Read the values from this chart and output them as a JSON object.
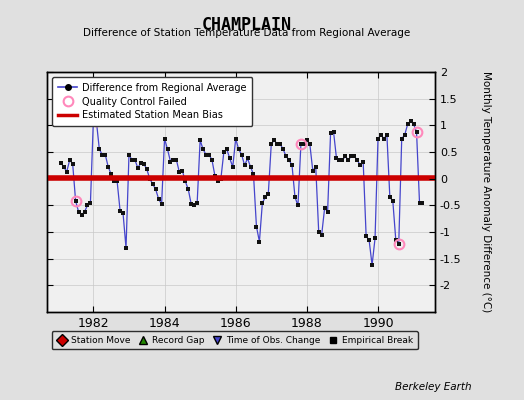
{
  "title": "CHAMPLAIN",
  "subtitle": "Difference of Station Temperature Data from Regional Average",
  "ylabel": "Monthly Temperature Anomaly Difference (°C)",
  "xlabel_bottom": "Berkeley Earth",
  "mean_bias": 0.02,
  "ylim": [
    -2.5,
    2.0
  ],
  "background_color": "#e0e0e0",
  "plot_bg_color": "#f0f0f0",
  "line_color": "#4444cc",
  "marker_color": "#111111",
  "bias_color": "#cc0000",
  "qc_color": "#ff88bb",
  "data": [
    [
      1981.0833,
      0.3
    ],
    [
      1981.1667,
      0.22
    ],
    [
      1981.25,
      0.13
    ],
    [
      1981.3333,
      0.35
    ],
    [
      1981.4167,
      0.28
    ],
    [
      1981.5,
      -0.42
    ],
    [
      1981.5833,
      -0.62
    ],
    [
      1981.6667,
      -0.68
    ],
    [
      1981.75,
      -0.62
    ],
    [
      1981.8333,
      -0.5
    ],
    [
      1981.9167,
      -0.45
    ],
    [
      1982.0,
      1.12
    ],
    [
      1982.0833,
      1.08
    ],
    [
      1982.1667,
      0.55
    ],
    [
      1982.25,
      0.45
    ],
    [
      1982.3333,
      0.45
    ],
    [
      1982.4167,
      0.22
    ],
    [
      1982.5,
      0.08
    ],
    [
      1982.5833,
      -0.05
    ],
    [
      1982.6667,
      -0.05
    ],
    [
      1982.75,
      -0.6
    ],
    [
      1982.8333,
      -0.65
    ],
    [
      1982.9167,
      -1.3
    ],
    [
      1983.0,
      0.45
    ],
    [
      1983.0833,
      0.35
    ],
    [
      1983.1667,
      0.35
    ],
    [
      1983.25,
      0.2
    ],
    [
      1983.3333,
      0.3
    ],
    [
      1983.4167,
      0.28
    ],
    [
      1983.5,
      0.18
    ],
    [
      1983.5833,
      0.0
    ],
    [
      1983.6667,
      -0.1
    ],
    [
      1983.75,
      -0.2
    ],
    [
      1983.8333,
      -0.38
    ],
    [
      1983.9167,
      -0.48
    ],
    [
      1984.0,
      0.75
    ],
    [
      1984.0833,
      0.55
    ],
    [
      1984.1667,
      0.32
    ],
    [
      1984.25,
      0.35
    ],
    [
      1984.3333,
      0.35
    ],
    [
      1984.4167,
      0.12
    ],
    [
      1984.5,
      0.15
    ],
    [
      1984.5833,
      -0.05
    ],
    [
      1984.6667,
      -0.2
    ],
    [
      1984.75,
      -0.48
    ],
    [
      1984.8333,
      -0.5
    ],
    [
      1984.9167,
      -0.45
    ],
    [
      1985.0,
      0.72
    ],
    [
      1985.0833,
      0.55
    ],
    [
      1985.1667,
      0.45
    ],
    [
      1985.25,
      0.45
    ],
    [
      1985.3333,
      0.35
    ],
    [
      1985.4167,
      0.05
    ],
    [
      1985.5,
      -0.05
    ],
    [
      1985.5833,
      0.0
    ],
    [
      1985.6667,
      0.5
    ],
    [
      1985.75,
      0.55
    ],
    [
      1985.8333,
      0.38
    ],
    [
      1985.9167,
      0.22
    ],
    [
      1986.0,
      0.75
    ],
    [
      1986.0833,
      0.55
    ],
    [
      1986.1667,
      0.45
    ],
    [
      1986.25,
      0.25
    ],
    [
      1986.3333,
      0.38
    ],
    [
      1986.4167,
      0.22
    ],
    [
      1986.5,
      0.08
    ],
    [
      1986.5833,
      -0.9
    ],
    [
      1986.6667,
      -1.18
    ],
    [
      1986.75,
      -0.45
    ],
    [
      1986.8333,
      -0.35
    ],
    [
      1986.9167,
      -0.28
    ],
    [
      1987.0,
      0.65
    ],
    [
      1987.0833,
      0.72
    ],
    [
      1987.1667,
      0.65
    ],
    [
      1987.25,
      0.65
    ],
    [
      1987.3333,
      0.55
    ],
    [
      1987.4167,
      0.42
    ],
    [
      1987.5,
      0.35
    ],
    [
      1987.5833,
      0.25
    ],
    [
      1987.6667,
      -0.35
    ],
    [
      1987.75,
      -0.5
    ],
    [
      1987.8333,
      0.65
    ],
    [
      1987.9167,
      0.65
    ],
    [
      1988.0,
      0.72
    ],
    [
      1988.0833,
      0.65
    ],
    [
      1988.1667,
      0.15
    ],
    [
      1988.25,
      0.22
    ],
    [
      1988.3333,
      -1.0
    ],
    [
      1988.4167,
      -1.05
    ],
    [
      1988.5,
      -0.55
    ],
    [
      1988.5833,
      -0.62
    ],
    [
      1988.6667,
      0.85
    ],
    [
      1988.75,
      0.88
    ],
    [
      1988.8333,
      0.38
    ],
    [
      1988.9167,
      0.35
    ],
    [
      1989.0,
      0.35
    ],
    [
      1989.0833,
      0.42
    ],
    [
      1989.1667,
      0.35
    ],
    [
      1989.25,
      0.42
    ],
    [
      1989.3333,
      0.42
    ],
    [
      1989.4167,
      0.35
    ],
    [
      1989.5,
      0.25
    ],
    [
      1989.5833,
      0.32
    ],
    [
      1989.6667,
      -1.08
    ],
    [
      1989.75,
      -1.15
    ],
    [
      1989.8333,
      -1.62
    ],
    [
      1989.9167,
      -1.12
    ],
    [
      1990.0,
      0.75
    ],
    [
      1990.0833,
      0.82
    ],
    [
      1990.1667,
      0.75
    ],
    [
      1990.25,
      0.82
    ],
    [
      1990.3333,
      -0.35
    ],
    [
      1990.4167,
      -0.42
    ],
    [
      1990.5,
      -1.15
    ],
    [
      1990.5833,
      -1.22
    ],
    [
      1990.6667,
      0.75
    ],
    [
      1990.75,
      0.82
    ],
    [
      1990.8333,
      1.02
    ],
    [
      1990.9167,
      1.08
    ],
    [
      1991.0,
      1.02
    ],
    [
      1991.0833,
      0.88
    ],
    [
      1991.1667,
      -0.45
    ],
    [
      1991.25,
      -0.45
    ]
  ],
  "qc_failed": [
    [
      1981.5,
      -0.42
    ],
    [
      1982.0833,
      1.08
    ],
    [
      1987.8333,
      0.65
    ],
    [
      1990.5833,
      -1.22
    ],
    [
      1991.0833,
      0.88
    ]
  ],
  "yticks": [
    -2.0,
    -1.5,
    -1.0,
    -0.5,
    0.0,
    0.5,
    1.0,
    1.5,
    2.0
  ],
  "xticks": [
    1982,
    1984,
    1986,
    1988,
    1990
  ],
  "xlim": [
    1980.7,
    1991.6
  ]
}
